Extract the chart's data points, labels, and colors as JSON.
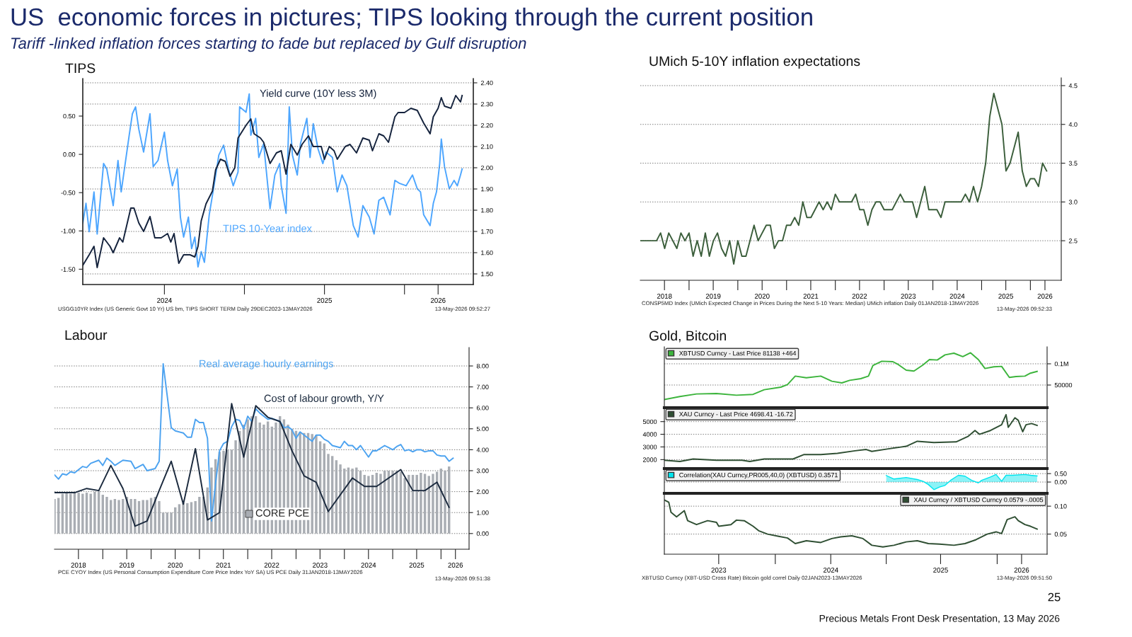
{
  "chart_data": [
    {
      "type": "other",
      "title": "US  economic forces in pictures; TIPS looking through the current position",
      "subtitle": "Tariff -linked inflation forces starting to fade but replaced by Gulf disruption",
      "annotations": [
        "25",
        "Precious Metals Front Desk Presentation, 13 May 2026"
      ]
    },
    {
      "type": "line",
      "title": "TIPS",
      "xlim": [
        2023.99,
        2026.43
      ],
      "xticks": [
        {
          "value": 2024.5,
          "label": "2024"
        },
        {
          "value": 2025.0,
          "label": null
        },
        {
          "value": 2025.5,
          "label": "2025"
        },
        {
          "value": 2026.0,
          "label": null
        },
        {
          "value": 2026.21,
          "label": "2026"
        }
      ],
      "ylim": [
        -1.7,
        0.99
      ],
      "yticks": [
        {
          "value": -1.5,
          "label": "-1.50"
        },
        {
          "value": -1.0,
          "label": "-1.00"
        },
        {
          "value": -0.5,
          "label": "-0.50"
        },
        {
          "value": 0.0,
          "label": "0.00"
        },
        {
          "value": 0.5,
          "label": "0.50"
        }
      ],
      "y2lim": [
        1.45,
        2.42
      ],
      "y2ticks": [
        {
          "value": 1.5,
          "label": "1.50"
        },
        {
          "value": 1.6,
          "label": "1.60"
        },
        {
          "value": 1.7,
          "label": "1.70"
        },
        {
          "value": 1.8,
          "label": "1.80"
        },
        {
          "value": 1.9,
          "label": "1.90"
        },
        {
          "value": 2.0,
          "label": "2.00"
        },
        {
          "value": 2.1,
          "label": "2.10"
        },
        {
          "value": 2.2,
          "label": "2.20"
        },
        {
          "value": 2.3,
          "label": "2.30"
        },
        {
          "value": 2.4,
          "label": "2.40"
        }
      ],
      "grid": "y",
      "series": [
        {
          "name": "TIPS 10-Year index",
          "color": "#4da6ff",
          "axis": "y",
          "x": [
            2023.99,
            2024.01,
            2024.03,
            2024.06,
            2024.08,
            2024.12,
            2024.14,
            2024.18,
            2024.21,
            2024.23,
            2024.28,
            2024.3,
            2024.32,
            2024.34,
            2024.37,
            2024.41,
            2024.43,
            2024.46,
            2024.5,
            2024.52,
            2024.55,
            2024.58,
            2024.6,
            2024.62,
            2024.65,
            2024.67,
            2024.69,
            2024.71,
            2024.73,
            2024.75,
            2024.78,
            2024.81,
            2024.84,
            2024.87,
            2024.9,
            2024.93,
            2024.96,
            2024.97,
            2025.01,
            2025.03,
            2025.04,
            2025.07,
            2025.09,
            2025.12,
            2025.16,
            2025.19,
            2025.22,
            2025.23,
            2025.26,
            2025.28,
            2025.3,
            2025.33,
            2025.35,
            2025.39,
            2025.41,
            2025.43,
            2025.46,
            2025.49,
            2025.51,
            2025.55,
            2025.58,
            2025.61,
            2025.64,
            2025.68,
            2025.71,
            2025.74,
            2025.78,
            2025.81,
            2025.84,
            2025.87,
            2025.91,
            2025.94,
            2025.97,
            2026.01,
            2026.05,
            2026.08,
            2026.1,
            2026.12,
            2026.16,
            2026.18,
            2026.2,
            2026.22,
            2026.23,
            2026.25,
            2026.28,
            2026.31,
            2026.33,
            2026.35,
            2026.36
          ],
          "values": [
            -0.9,
            -0.64,
            -1.01,
            -0.49,
            -1.04,
            -0.12,
            -0.19,
            -0.67,
            -0.08,
            -0.49,
            0.25,
            0.53,
            0.62,
            0.33,
            0.03,
            0.53,
            -0.16,
            -0.08,
            0.29,
            -0.08,
            -0.41,
            -0.19,
            -0.82,
            -1.08,
            -0.82,
            -1.23,
            -1.08,
            -1.47,
            -1.27,
            -1.41,
            -0.79,
            -0.41,
            -0.01,
            0.12,
            -0.19,
            -0.41,
            -0.23,
            0.62,
            0.55,
            0.79,
            0.25,
            0.47,
            -0.04,
            0.14,
            -0.71,
            -0.27,
            -0.12,
            -0.41,
            -0.77,
            0.62,
            -0.01,
            -0.27,
            0.14,
            0.47,
            -0.04,
            0.4,
            0.07,
            -0.12,
            0.03,
            -0.04,
            -0.49,
            -0.27,
            -0.41,
            -0.93,
            -1.08,
            -0.67,
            -0.82,
            -1.04,
            -0.6,
            -0.56,
            -0.79,
            -0.34,
            -0.38,
            -0.41,
            -0.27,
            -0.45,
            -0.49,
            -0.79,
            -0.93,
            -0.64,
            -0.49,
            -0.12,
            0.2,
            -0.16,
            -0.45,
            -0.34,
            -0.41,
            -0.27,
            -0.19
          ]
        },
        {
          "name": "Yield curve (10Y less 3M)",
          "color": "#15233d",
          "axis": "y2",
          "x": [
            2023.99,
            2024.03,
            2024.06,
            2024.08,
            2024.12,
            2024.16,
            2024.18,
            2024.22,
            2024.24,
            2024.29,
            2024.31,
            2024.34,
            2024.37,
            2024.41,
            2024.44,
            2024.48,
            2024.52,
            2024.54,
            2024.56,
            2024.59,
            2024.62,
            2024.66,
            2024.69,
            2024.71,
            2024.73,
            2024.76,
            2024.8,
            2024.82,
            2024.85,
            2024.88,
            2024.91,
            2024.94,
            2024.96,
            2025.01,
            2025.04,
            2025.06,
            2025.1,
            2025.12,
            2025.16,
            2025.2,
            2025.23,
            2025.26,
            2025.29,
            2025.33,
            2025.36,
            2025.4,
            2025.43,
            2025.48,
            2025.5,
            2025.53,
            2025.56,
            2025.58,
            2025.63,
            2025.66,
            2025.7,
            2025.74,
            2025.78,
            2025.8,
            2025.84,
            2025.87,
            2025.9,
            2025.94,
            2025.96,
            2026.0,
            2026.04,
            2026.08,
            2026.12,
            2026.16,
            2026.18,
            2026.21,
            2026.23,
            2026.25,
            2026.29,
            2026.32,
            2026.35,
            2026.36
          ],
          "values": [
            1.54,
            1.59,
            1.63,
            1.53,
            1.67,
            1.63,
            1.6,
            1.67,
            1.65,
            1.81,
            1.81,
            1.74,
            1.7,
            1.77,
            1.67,
            1.67,
            1.69,
            1.65,
            1.69,
            1.55,
            1.59,
            1.59,
            1.58,
            1.63,
            1.75,
            1.83,
            1.89,
            1.99,
            2.04,
            2.03,
            1.96,
            2.0,
            2.14,
            2.2,
            2.23,
            2.16,
            2.14,
            2.12,
            2.02,
            2.07,
            2.08,
            1.97,
            2.11,
            2.06,
            2.11,
            2.15,
            2.1,
            2.1,
            2.04,
            2.1,
            2.08,
            2.04,
            2.1,
            2.11,
            2.07,
            2.14,
            2.13,
            2.08,
            2.16,
            2.15,
            2.12,
            2.24,
            2.26,
            2.26,
            2.28,
            2.27,
            2.21,
            2.16,
            2.24,
            2.28,
            2.33,
            2.29,
            2.28,
            2.34,
            2.31,
            2.34
          ]
        }
      ],
      "annotations": [
        "USGG10YR Index (US Generic Govt 10 Yr) US bm, TIPS SHORT TERM Daily 29DEC2023-13MAY2026",
        "13-May-2026 09:52:27"
      ]
    },
    {
      "type": "line",
      "title": "UMich 5-10Y inflation expectations",
      "xlim": [
        "2018-01-01",
        "2026-08-20"
      ],
      "xticks": [
        {
          "value": "2018-07-01",
          "label": "2018"
        },
        {
          "value": "2019-01-01",
          "label": null
        },
        {
          "value": "2019-07-01",
          "label": "2019"
        },
        {
          "value": "2020-01-01",
          "label": null
        },
        {
          "value": "2020-07-01",
          "label": "2020"
        },
        {
          "value": "2021-01-01",
          "label": null
        },
        {
          "value": "2021-07-01",
          "label": "2021"
        },
        {
          "value": "2022-01-01",
          "label": null
        },
        {
          "value": "2022-07-01",
          "label": "2022"
        },
        {
          "value": "2023-01-01",
          "label": null
        },
        {
          "value": "2023-07-01",
          "label": "2023"
        },
        {
          "value": "2024-01-01",
          "label": null
        },
        {
          "value": "2024-07-01",
          "label": "2024"
        },
        {
          "value": "2025-01-01",
          "label": null
        },
        {
          "value": "2025-07-01",
          "label": "2025"
        },
        {
          "value": "2026-01-01",
          "label": null
        },
        {
          "value": "2026-04-20",
          "label": "2026"
        }
      ],
      "ylim": [
        1.99,
        4.6
      ],
      "yticks": [
        {
          "value": 2.5,
          "label": "2.5"
        },
        {
          "value": 3.0,
          "label": "3.0"
        },
        {
          "value": 3.5,
          "label": "3.5"
        },
        {
          "value": 4.0,
          "label": "4.0"
        },
        {
          "value": 4.5,
          "label": "4.5"
        }
      ],
      "grid": "y",
      "series": [
        {
          "color": "#3b5e3b",
          "x": [
            "2018-01",
            "2018-05",
            "2018-06",
            "2018-07",
            "2018-08",
            "2018-10",
            "2018-11",
            "2018-12",
            "2019-01",
            "2019-02",
            "2019-03",
            "2019-04",
            "2019-05",
            "2019-06",
            "2019-07",
            "2019-08",
            "2019-09",
            "2019-10",
            "2019-11",
            "2019-12",
            "2020-01",
            "2020-02",
            "2020-03",
            "2020-05",
            "2020-06",
            "2020-08",
            "2020-09",
            "2020-10",
            "2020-11",
            "2020-12",
            "2021-01",
            "2021-02",
            "2021-03",
            "2021-04",
            "2021-05",
            "2021-06",
            "2021-07",
            "2021-09",
            "2021-10",
            "2021-11",
            "2021-12",
            "2022-01",
            "2022-02",
            "2022-05",
            "2022-06",
            "2022-07",
            "2022-08",
            "2022-09",
            "2022-10",
            "2022-11",
            "2022-12",
            "2023-01",
            "2023-03",
            "2023-05",
            "2023-06",
            "2023-08",
            "2023-09",
            "2023-11",
            "2023-12",
            "2024-02",
            "2024-03",
            "2024-04",
            "2024-08",
            "2024-09",
            "2024-10",
            "2024-11",
            "2024-12",
            "2025-01",
            "2025-02",
            "2025-03",
            "2025-04",
            "2025-06",
            "2025-07",
            "2025-08",
            "2025-10",
            "2025-11",
            "2025-12",
            "2026-01",
            "2026-02",
            "2026-03",
            "2026-04",
            "2026-05"
          ],
          "values": [
            2.5,
            2.5,
            2.6,
            2.4,
            2.6,
            2.4,
            2.6,
            2.5,
            2.6,
            2.3,
            2.5,
            2.3,
            2.6,
            2.3,
            2.5,
            2.6,
            2.4,
            2.3,
            2.5,
            2.2,
            2.5,
            2.3,
            2.3,
            2.7,
            2.5,
            2.7,
            2.7,
            2.4,
            2.5,
            2.5,
            2.7,
            2.7,
            2.8,
            2.7,
            3.0,
            2.8,
            2.8,
            3.0,
            2.9,
            3.0,
            2.9,
            3.1,
            3.0,
            3.0,
            3.1,
            2.9,
            2.9,
            2.7,
            2.9,
            3.0,
            3.0,
            2.9,
            2.9,
            3.1,
            3.0,
            3.0,
            2.8,
            3.2,
            2.9,
            2.9,
            2.8,
            3.0,
            3.0,
            3.1,
            3.0,
            3.2,
            3.0,
            3.2,
            3.5,
            4.1,
            4.4,
            4.0,
            3.4,
            3.5,
            3.9,
            3.4,
            3.2,
            3.3,
            3.3,
            3.2,
            3.5,
            3.4
          ]
        }
      ],
      "annotations": [
        "CONSP5MD Index (UMich Expected Change in Prices During the Next 5-10 Years: Median) UMich inflation Daily 01JAN2018-13MAY2026",
        "13-May-2026 09:52:33"
      ]
    },
    {
      "type": "bar",
      "title": "Labour",
      "xlim": [
        "2018-01-01",
        "2026-08-01"
      ],
      "xticks": [
        {
          "value": "2018-07-01",
          "label": "2018"
        },
        {
          "value": "2019-01-01",
          "label": null
        },
        {
          "value": "2019-07-01",
          "label": "2019"
        },
        {
          "value": "2020-01-01",
          "label": null
        },
        {
          "value": "2020-07-01",
          "label": "2020"
        },
        {
          "value": "2021-01-01",
          "label": null
        },
        {
          "value": "2021-07-01",
          "label": "2021"
        },
        {
          "value": "2022-01-01",
          "label": null
        },
        {
          "value": "2022-07-01",
          "label": "2022"
        },
        {
          "value": "2023-01-01",
          "label": null
        },
        {
          "value": "2023-07-01",
          "label": "2023"
        },
        {
          "value": "2024-01-01",
          "label": null
        },
        {
          "value": "2024-07-01",
          "label": "2024"
        },
        {
          "value": "2025-01-01",
          "label": null
        },
        {
          "value": "2025-07-01",
          "label": "2025"
        },
        {
          "value": "2026-01-01",
          "label": null
        },
        {
          "value": "2026-04-20",
          "label": "2026"
        }
      ],
      "ylim": [
        -0.75,
        8.88
      ],
      "yticks": [
        {
          "value": 0,
          "label": "0.00"
        },
        {
          "value": 1,
          "label": "1.00"
        },
        {
          "value": 2,
          "label": "2.00"
        },
        {
          "value": 3,
          "label": "3.00"
        },
        {
          "value": 4,
          "label": "4.00"
        },
        {
          "value": 5,
          "label": "5.00"
        },
        {
          "value": 6,
          "label": "6.00"
        },
        {
          "value": 7,
          "label": "7.00"
        },
        {
          "value": 8,
          "label": "8.00"
        }
      ],
      "grid": "y",
      "series": [
        {
          "name": "CORE PCE",
          "type": "bar",
          "color": "#a9adb3",
          "x": [
            "2018-01",
            "2018-02",
            "2018-03",
            "2018-04",
            "2018-05",
            "2018-06",
            "2018-07",
            "2018-08",
            "2018-09",
            "2018-10",
            "2018-11",
            "2018-12",
            "2019-01",
            "2019-02",
            "2019-03",
            "2019-04",
            "2019-05",
            "2019-06",
            "2019-07",
            "2019-08",
            "2019-09",
            "2019-10",
            "2019-11",
            "2019-12",
            "2020-01",
            "2020-02",
            "2020-03",
            "2020-04",
            "2020-05",
            "2020-06",
            "2020-07",
            "2020-08",
            "2020-09",
            "2020-10",
            "2020-11",
            "2020-12",
            "2021-01",
            "2021-02",
            "2021-03",
            "2021-04",
            "2021-05",
            "2021-06",
            "2021-07",
            "2021-08",
            "2021-09",
            "2021-10",
            "2021-11",
            "2021-12",
            "2022-01",
            "2022-02",
            "2022-03",
            "2022-04",
            "2022-05",
            "2022-06",
            "2022-07",
            "2022-08",
            "2022-09",
            "2022-10",
            "2022-11",
            "2022-12",
            "2023-01",
            "2023-02",
            "2023-03",
            "2023-04",
            "2023-05",
            "2023-06",
            "2023-07",
            "2023-08",
            "2023-09",
            "2023-10",
            "2023-11",
            "2023-12",
            "2024-01",
            "2024-02",
            "2024-03",
            "2024-04",
            "2024-05",
            "2024-06",
            "2024-07",
            "2024-08",
            "2024-09",
            "2024-10",
            "2024-11",
            "2024-12",
            "2025-01",
            "2025-02",
            "2025-03",
            "2025-04",
            "2025-05",
            "2025-06",
            "2025-07",
            "2025-08",
            "2025-09",
            "2025-10",
            "2025-11",
            "2025-12",
            "2026-01",
            "2026-02",
            "2026-03"
          ],
          "values": [
            1.65,
            1.7,
            1.9,
            1.95,
            1.9,
            1.95,
            1.95,
            1.9,
            1.95,
            1.9,
            2.0,
            2.05,
            1.85,
            1.75,
            1.6,
            1.65,
            1.6,
            1.65,
            1.75,
            1.65,
            1.65,
            1.55,
            1.6,
            1.6,
            1.7,
            1.75,
            1.55,
            1.0,
            1.0,
            1.0,
            1.25,
            1.4,
            1.45,
            1.45,
            1.5,
            1.55,
            1.75,
            1.75,
            2.2,
            3.15,
            3.55,
            3.9,
            3.95,
            4.0,
            4.0,
            4.45,
            4.9,
            5.2,
            5.45,
            5.6,
            5.6,
            5.3,
            5.2,
            5.35,
            5.1,
            5.3,
            5.6,
            5.45,
            5.2,
            5.0,
            4.9,
            4.85,
            4.8,
            4.8,
            4.75,
            4.7,
            4.4,
            4.3,
            3.8,
            3.7,
            3.5,
            3.3,
            3.1,
            3.15,
            3.1,
            3.15,
            3.0,
            2.8,
            2.75,
            2.8,
            2.9,
            2.85,
            3.0,
            3.0,
            3.0,
            3.0,
            2.95,
            2.65,
            2.8,
            2.8,
            2.8,
            2.9,
            2.85,
            2.75,
            2.85,
            2.95,
            3.1,
            3.0,
            3.2
          ]
        },
        {
          "name": "Real average hourly earnings",
          "type": "line",
          "color": "#4da3f0",
          "x": [
            "2018-01",
            "2018-02",
            "2018-03",
            "2018-04",
            "2018-05",
            "2018-06",
            "2018-08",
            "2018-09",
            "2018-10",
            "2018-12",
            "2019-01",
            "2019-02",
            "2019-03",
            "2019-04",
            "2019-06",
            "2019-08",
            "2019-09",
            "2019-11",
            "2019-12",
            "2020-02",
            "2020-03",
            "2020-04",
            "2020-06",
            "2020-07",
            "2020-09",
            "2020-10",
            "2020-11",
            "2020-12",
            "2021-01",
            "2021-02",
            "2021-03",
            "2021-04",
            "2021-05",
            "2021-06",
            "2021-07",
            "2021-08",
            "2021-09",
            "2021-10",
            "2021-11",
            "2021-12",
            "2022-01",
            "2022-02",
            "2022-03",
            "2022-04",
            "2022-06",
            "2022-07",
            "2022-09",
            "2022-10",
            "2022-11",
            "2022-12",
            "2023-01",
            "2023-02",
            "2023-03",
            "2023-05",
            "2023-06",
            "2023-07",
            "2023-08",
            "2023-09",
            "2023-10",
            "2023-12",
            "2024-01",
            "2024-02",
            "2024-03",
            "2024-04",
            "2024-05",
            "2024-07",
            "2024-08",
            "2024-09",
            "2024-11",
            "2024-12",
            "2025-01",
            "2025-02",
            "2025-03",
            "2025-04",
            "2025-05",
            "2025-06",
            "2025-07",
            "2025-08",
            "2025-09",
            "2025-10",
            "2025-11",
            "2025-12",
            "2026-01",
            "2026-02",
            "2026-03",
            "2026-04"
          ],
          "values": [
            2.8,
            2.6,
            2.85,
            2.8,
            2.95,
            2.9,
            3.2,
            3.15,
            3.35,
            3.5,
            3.25,
            3.6,
            3.45,
            3.25,
            3.5,
            3.45,
            3.1,
            3.3,
            3.0,
            3.1,
            3.45,
            8.1,
            5.05,
            4.9,
            4.8,
            4.6,
            4.6,
            5.45,
            5.3,
            5.3,
            4.55,
            0.6,
            2.4,
            3.95,
            4.3,
            4.4,
            5.1,
            5.45,
            5.4,
            5.0,
            5.6,
            5.35,
            5.95,
            5.75,
            5.45,
            5.5,
            5.35,
            5.05,
            5.1,
            4.95,
            4.55,
            4.85,
            4.7,
            4.4,
            4.7,
            4.7,
            4.5,
            4.4,
            4.2,
            4.1,
            4.4,
            4.2,
            4.2,
            4.0,
            4.2,
            3.65,
            3.95,
            3.95,
            4.2,
            4.1,
            4.0,
            4.15,
            4.25,
            3.95,
            4.0,
            3.9,
            4.0,
            4.0,
            3.9,
            3.95,
            3.95,
            3.75,
            3.7,
            3.7,
            3.45,
            3.6
          ]
        },
        {
          "name": "Cost of labour growth, Y/Y",
          "type": "line",
          "color": "#1b2a3e",
          "x": [
            "2018-01",
            "2018-06",
            "2018-09",
            "2018-12",
            "2019-03",
            "2019-06",
            "2019-09",
            "2019-12",
            "2020-03",
            "2020-06",
            "2020-09",
            "2020-12",
            "2021-03",
            "2021-06",
            "2021-09",
            "2021-12",
            "2022-03",
            "2022-06",
            "2022-09",
            "2022-12",
            "2023-03",
            "2023-06",
            "2023-09",
            "2024-03",
            "2024-06",
            "2024-09",
            "2025-03",
            "2025-06",
            "2025-09",
            "2025-12",
            "2026-03"
          ],
          "values": [
            1.95,
            1.95,
            2.15,
            2.05,
            3.25,
            2.15,
            0.35,
            0.6,
            2.05,
            3.45,
            1.4,
            4.05,
            0.65,
            1.0,
            6.2,
            3.65,
            6.1,
            5.55,
            5.35,
            3.95,
            2.75,
            2.45,
            1.05,
            2.65,
            2.25,
            2.25,
            3.05,
            2.05,
            2.05,
            2.45,
            1.25
          ]
        }
      ],
      "annotations": [
        "PCE CYOY Index (US Personal Consumption Expenditure Core Price Index YoY SA) US PCE Daily 31JAN2018-13MAY2026",
        "13-May-2026 09:51:38"
      ]
    },
    {
      "type": "line",
      "title": "Gold, Bitcoin",
      "xlim": [
        2023.0,
        2026.45
      ],
      "tick_labels": "y",
      "ylim": [
        0,
        140000
      ],
      "yticks": [
        50000,
        {
          "value": 100000,
          "label": "0.1M"
        }
      ],
      "grid": "y",
      "legend": "top left",
      "series": [
        {
          "name": "XBTUSD Curncy - Last Price 81138 +464",
          "color": "#3cb43c",
          "x": [
            2023.0,
            2023.14,
            2023.29,
            2023.47,
            2023.65,
            2023.8,
            2023.9,
            2024.05,
            2024.11,
            2024.18,
            2024.28,
            2024.41,
            2024.51,
            2024.6,
            2024.67,
            2024.77,
            2024.84,
            2024.88,
            2024.96,
            2025.06,
            2025.11,
            2025.18,
            2025.25,
            2025.33,
            2025.39,
            2025.46,
            2025.53,
            2025.61,
            2025.69,
            2025.76,
            2025.83,
            2025.89,
            2025.97,
            2026.04,
            2026.11,
            2026.17,
            2026.25,
            2026.3,
            2026.36
          ],
          "values": [
            16000,
            23000,
            29000,
            30000,
            26000,
            28000,
            39000,
            45000,
            51000,
            71000,
            67000,
            71000,
            59000,
            55000,
            61000,
            65000,
            71000,
            96000,
            106000,
            105000,
            98000,
            85000,
            83000,
            97000,
            110000,
            109000,
            121000,
            125000,
            117000,
            126000,
            110000,
            89000,
            93000,
            94000,
            68000,
            70000,
            71000,
            78000,
            82000
          ]
        }
      ]
    },
    {
      "type": "line",
      "xlim": [
        2023.0,
        2026.45
      ],
      "tick_labels": "y",
      "ylim": [
        1350,
        6100
      ],
      "yticks": [
        2000,
        3000,
        4000,
        5000
      ],
      "grid": "y",
      "legend": "top left",
      "series": [
        {
          "name": "XAU Curncy - Last Price 4698.41 -16.72",
          "color": "#2f4f33",
          "x": [
            2023.0,
            2023.14,
            2023.26,
            2023.47,
            2023.7,
            2023.77,
            2023.9,
            2024.16,
            2024.26,
            2024.41,
            2024.56,
            2024.72,
            2024.82,
            2024.87,
            2025.02,
            2025.18,
            2025.28,
            2025.43,
            2025.63,
            2025.74,
            2025.8,
            2025.84,
            2025.94,
            2026.04,
            2026.08,
            2026.1,
            2026.16,
            2026.19,
            2026.23,
            2026.26,
            2026.31,
            2026.36
          ],
          "values": [
            1950,
            1850,
            2050,
            1950,
            1950,
            1850,
            2050,
            2050,
            2400,
            2400,
            2500,
            2700,
            2800,
            2650,
            2850,
            3050,
            3450,
            3350,
            3400,
            3850,
            4300,
            4000,
            4300,
            4750,
            5550,
            4550,
            5300,
            5100,
            4200,
            4750,
            4850,
            4700
          ]
        }
      ]
    },
    {
      "type": "area",
      "xlim": [
        2023.0,
        2026.45
      ],
      "tick_labels": "y",
      "ylim": [
        -0.67,
        0.8
      ],
      "yticks": [
        {
          "value": 0.0,
          "label": "0.00"
        },
        {
          "value": 0.5,
          "label": "0.50"
        }
      ],
      "grid": "y",
      "legend": "top left",
      "series": [
        {
          "name": "Correlation(XAU Curncy,PR005,40,0) (XBTUSD) 0.3571",
          "color": "#00e5ee",
          "x": [
            2025.0,
            2025.07,
            2025.18,
            2025.28,
            2025.33,
            2025.38,
            2025.43,
            2025.48,
            2025.53,
            2025.58,
            2025.65,
            2025.71,
            2025.77,
            2025.83,
            2025.86,
            2025.94,
            2025.99,
            2026.04,
            2026.08,
            2026.14,
            2026.25,
            2026.3,
            2026.36
          ],
          "values": [
            0.39,
            0.18,
            0.27,
            0.15,
            0.05,
            -0.15,
            -0.45,
            -0.3,
            -0.2,
            0.1,
            0.4,
            0.35,
            0.1,
            -0.05,
            0.1,
            0.3,
            0.45,
            0.05,
            0.4,
            0.4,
            0.45,
            0.4,
            0.36
          ]
        }
      ]
    },
    {
      "type": "line",
      "xlim": [
        2023.0,
        2026.45
      ],
      "xticks": [
        {
          "value": 2023.49,
          "label": "2023"
        },
        {
          "value": 2024,
          "label": null
        },
        {
          "value": 2024.5,
          "label": "2024"
        },
        {
          "value": 2025,
          "label": null
        },
        {
          "value": 2025.49,
          "label": "2025"
        },
        {
          "value": 2026,
          "label": null
        },
        {
          "value": 2026.22,
          "label": "2026"
        }
      ],
      "ylim": [
        0.014,
        0.123
      ],
      "yticks": [
        {
          "value": 0.05,
          "label": "0.05"
        },
        {
          "value": 0.1,
          "label": "0.10"
        }
      ],
      "grid": "y",
      "legend": "top right",
      "series": [
        {
          "name": "XAU Curncy / XBTUSD Curncy 0.0579 -.0005",
          "color": "#2f4f33",
          "x": [
            2023.0,
            2023.04,
            2023.06,
            2023.11,
            2023.18,
            2023.21,
            2023.29,
            2023.39,
            2023.47,
            2023.49,
            2023.6,
            2023.65,
            2023.72,
            2023.8,
            2023.85,
            2023.93,
            2024.03,
            2024.11,
            2024.18,
            2024.28,
            2024.41,
            2024.51,
            2024.59,
            2024.69,
            2024.79,
            2024.87,
            2024.97,
            2025.07,
            2025.18,
            2025.28,
            2025.38,
            2025.48,
            2025.61,
            2025.71,
            2025.81,
            2025.91,
            2025.99,
            2026.04,
            2026.09,
            2026.16,
            2026.19,
            2026.25,
            2026.3,
            2026.36
          ],
          "values": [
            0.111,
            0.107,
            0.089,
            0.081,
            0.092,
            0.074,
            0.067,
            0.074,
            0.071,
            0.064,
            0.067,
            0.075,
            0.074,
            0.064,
            0.056,
            0.05,
            0.046,
            0.043,
            0.033,
            0.038,
            0.035,
            0.042,
            0.045,
            0.047,
            0.042,
            0.03,
            0.027,
            0.03,
            0.036,
            0.038,
            0.033,
            0.032,
            0.03,
            0.033,
            0.04,
            0.05,
            0.054,
            0.051,
            0.076,
            0.081,
            0.074,
            0.067,
            0.064,
            0.059
          ]
        }
      ],
      "annotations": [
        "XBTUSD Curncy (XBT-USD Cross Rate) Bitcoin gold correl Daily 02JAN2023-13MAY2026",
        "13-May-2026 09:51:50"
      ]
    }
  ]
}
